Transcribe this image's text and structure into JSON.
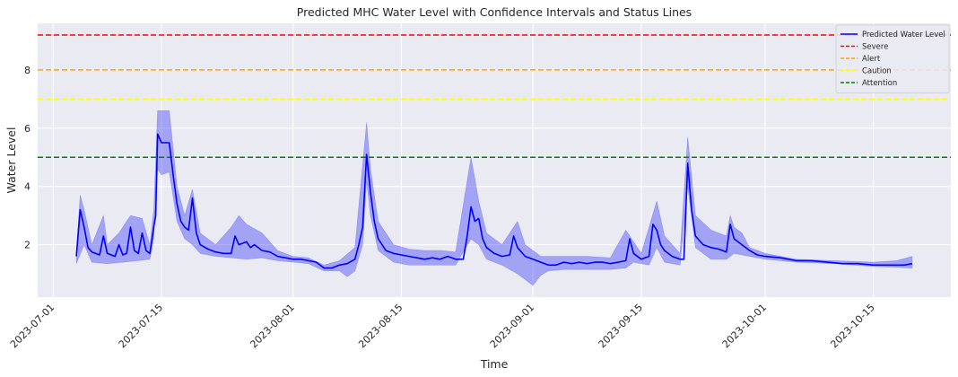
{
  "chart_data": {
    "type": "line",
    "title": "Predicted MHC Water Level with Confidence Intervals and Status Lines",
    "xlabel": "Time",
    "ylabel": "Water Level",
    "xlim": [
      "2023-06-29",
      "2023-10-25"
    ],
    "ylim": [
      0.2,
      9.6
    ],
    "grid": true,
    "legend_position": "top-right",
    "x_ticks": [
      "2023-07-01",
      "2023-07-15",
      "2023-08-01",
      "2023-08-15",
      "2023-09-01",
      "2023-09-15",
      "2023-10-01",
      "2023-10-15"
    ],
    "y_ticks": [
      2,
      4,
      6,
      8
    ],
    "series": [
      {
        "name": "Predicted Water Level",
        "color": "#0000ff",
        "points": [
          [
            "2023-07-04",
            1.6
          ],
          [
            "2023-07-04T12",
            3.2
          ],
          [
            "2023-07-05",
            2.6
          ],
          [
            "2023-07-05T12",
            1.9
          ],
          [
            "2023-07-06",
            1.75
          ],
          [
            "2023-07-07",
            1.65
          ],
          [
            "2023-07-07T12",
            2.3
          ],
          [
            "2023-07-08",
            1.7
          ],
          [
            "2023-07-09",
            1.6
          ],
          [
            "2023-07-09T12",
            2.0
          ],
          [
            "2023-07-10",
            1.65
          ],
          [
            "2023-07-10T12",
            1.7
          ],
          [
            "2023-07-11",
            2.6
          ],
          [
            "2023-07-11T12",
            1.8
          ],
          [
            "2023-07-12",
            1.7
          ],
          [
            "2023-07-12T12",
            2.4
          ],
          [
            "2023-07-13",
            1.8
          ],
          [
            "2023-07-13T12",
            1.7
          ],
          [
            "2023-07-14",
            2.6
          ],
          [
            "2023-07-14T06",
            3.0
          ],
          [
            "2023-07-14T12",
            5.8
          ],
          [
            "2023-07-15",
            5.5
          ],
          [
            "2023-07-16",
            5.5
          ],
          [
            "2023-07-16T12",
            4.4
          ],
          [
            "2023-07-17",
            3.4
          ],
          [
            "2023-07-17T12",
            2.8
          ],
          [
            "2023-07-18",
            2.6
          ],
          [
            "2023-07-18T12",
            2.5
          ],
          [
            "2023-07-19",
            3.6
          ],
          [
            "2023-07-19T12",
            2.4
          ],
          [
            "2023-07-20",
            2.0
          ],
          [
            "2023-07-21",
            1.85
          ],
          [
            "2023-07-22",
            1.75
          ],
          [
            "2023-07-23",
            1.7
          ],
          [
            "2023-07-24",
            1.7
          ],
          [
            "2023-07-24T12",
            2.3
          ],
          [
            "2023-07-25",
            2.0
          ],
          [
            "2023-07-26",
            2.1
          ],
          [
            "2023-07-26T12",
            1.9
          ],
          [
            "2023-07-27",
            2.0
          ],
          [
            "2023-07-28",
            1.8
          ],
          [
            "2023-07-29",
            1.75
          ],
          [
            "2023-07-30",
            1.6
          ],
          [
            "2023-07-31",
            1.55
          ],
          [
            "2023-08-01",
            1.5
          ],
          [
            "2023-08-02",
            1.5
          ],
          [
            "2023-08-03",
            1.45
          ],
          [
            "2023-08-04",
            1.4
          ],
          [
            "2023-08-05",
            1.2
          ],
          [
            "2023-08-06",
            1.2
          ],
          [
            "2023-08-07",
            1.3
          ],
          [
            "2023-08-08",
            1.35
          ],
          [
            "2023-08-09",
            1.5
          ],
          [
            "2023-08-09T12",
            2.0
          ],
          [
            "2023-08-10",
            2.6
          ],
          [
            "2023-08-10T12",
            5.1
          ],
          [
            "2023-08-11",
            3.8
          ],
          [
            "2023-08-11T12",
            2.8
          ],
          [
            "2023-08-12",
            2.2
          ],
          [
            "2023-08-13",
            1.8
          ],
          [
            "2023-08-14",
            1.7
          ],
          [
            "2023-08-15",
            1.65
          ],
          [
            "2023-08-16",
            1.6
          ],
          [
            "2023-08-17",
            1.55
          ],
          [
            "2023-08-18",
            1.5
          ],
          [
            "2023-08-19",
            1.55
          ],
          [
            "2023-08-20",
            1.5
          ],
          [
            "2023-08-21",
            1.6
          ],
          [
            "2023-08-22",
            1.5
          ],
          [
            "2023-08-23",
            1.5
          ],
          [
            "2023-08-23T12",
            2.3
          ],
          [
            "2023-08-24",
            3.3
          ],
          [
            "2023-08-24T12",
            2.8
          ],
          [
            "2023-08-25",
            2.9
          ],
          [
            "2023-08-25T12",
            2.2
          ],
          [
            "2023-08-26",
            1.9
          ],
          [
            "2023-08-27",
            1.7
          ],
          [
            "2023-08-28",
            1.6
          ],
          [
            "2023-08-29",
            1.65
          ],
          [
            "2023-08-29T12",
            2.3
          ],
          [
            "2023-08-30",
            1.9
          ],
          [
            "2023-08-31",
            1.6
          ],
          [
            "2023-09-01",
            1.5
          ],
          [
            "2023-09-02",
            1.4
          ],
          [
            "2023-09-03",
            1.3
          ],
          [
            "2023-09-04",
            1.3
          ],
          [
            "2023-09-05",
            1.4
          ],
          [
            "2023-09-06",
            1.35
          ],
          [
            "2023-09-07",
            1.4
          ],
          [
            "2023-09-08",
            1.35
          ],
          [
            "2023-09-09",
            1.4
          ],
          [
            "2023-09-10",
            1.4
          ],
          [
            "2023-09-11",
            1.35
          ],
          [
            "2023-09-12",
            1.4
          ],
          [
            "2023-09-13",
            1.45
          ],
          [
            "2023-09-13T12",
            2.2
          ],
          [
            "2023-09-14",
            1.7
          ],
          [
            "2023-09-15",
            1.5
          ],
          [
            "2023-09-16",
            1.6
          ],
          [
            "2023-09-16T12",
            2.7
          ],
          [
            "2023-09-17",
            2.5
          ],
          [
            "2023-09-17T12",
            2.0
          ],
          [
            "2023-09-18",
            1.8
          ],
          [
            "2023-09-19",
            1.6
          ],
          [
            "2023-09-20",
            1.5
          ],
          [
            "2023-09-20T12",
            1.5
          ],
          [
            "2023-09-21",
            4.8
          ],
          [
            "2023-09-21T12",
            3.2
          ],
          [
            "2023-09-22",
            2.3
          ],
          [
            "2023-09-23",
            2.0
          ],
          [
            "2023-09-24",
            1.9
          ],
          [
            "2023-09-25",
            1.85
          ],
          [
            "2023-09-26",
            1.75
          ],
          [
            "2023-09-26T12",
            2.7
          ],
          [
            "2023-09-27",
            2.2
          ],
          [
            "2023-09-28",
            2.0
          ],
          [
            "2023-09-29",
            1.8
          ],
          [
            "2023-09-30",
            1.65
          ],
          [
            "2023-10-01",
            1.6
          ],
          [
            "2023-10-03",
            1.55
          ],
          [
            "2023-10-05",
            1.45
          ],
          [
            "2023-10-07",
            1.45
          ],
          [
            "2023-10-09",
            1.4
          ],
          [
            "2023-10-11",
            1.35
          ],
          [
            "2023-10-13",
            1.35
          ],
          [
            "2023-10-15",
            1.3
          ],
          [
            "2023-10-17",
            1.3
          ],
          [
            "2023-10-19",
            1.3
          ],
          [
            "2023-10-20",
            1.35
          ]
        ]
      }
    ],
    "confidence_band": {
      "color": "#0000ff",
      "opacity": 0.3,
      "lower": [
        [
          "2023-07-04",
          1.35
        ],
        [
          "2023-07-05",
          2.0
        ],
        [
          "2023-07-06",
          1.4
        ],
        [
          "2023-07-08",
          1.35
        ],
        [
          "2023-07-10",
          1.4
        ],
        [
          "2023-07-12",
          1.45
        ],
        [
          "2023-07-13T12",
          1.5
        ],
        [
          "2023-07-14",
          2.2
        ],
        [
          "2023-07-14T12",
          4.6
        ],
        [
          "2023-07-15",
          4.4
        ],
        [
          "2023-07-16",
          4.5
        ],
        [
          "2023-07-17",
          2.8
        ],
        [
          "2023-07-18",
          2.2
        ],
        [
          "2023-07-19",
          2.0
        ],
        [
          "2023-07-20",
          1.7
        ],
        [
          "2023-07-22",
          1.6
        ],
        [
          "2023-07-24",
          1.55
        ],
        [
          "2023-07-26",
          1.5
        ],
        [
          "2023-07-28",
          1.55
        ],
        [
          "2023-07-30",
          1.45
        ],
        [
          "2023-08-01",
          1.4
        ],
        [
          "2023-08-03",
          1.35
        ],
        [
          "2023-08-05",
          1.1
        ],
        [
          "2023-08-07",
          1.1
        ],
        [
          "2023-08-08",
          0.9
        ],
        [
          "2023-08-09",
          1.1
        ],
        [
          "2023-08-10",
          2.0
        ],
        [
          "2023-08-10T12",
          4.2
        ],
        [
          "2023-08-11",
          3.0
        ],
        [
          "2023-08-12",
          1.8
        ],
        [
          "2023-08-14",
          1.4
        ],
        [
          "2023-08-16",
          1.3
        ],
        [
          "2023-08-18",
          1.3
        ],
        [
          "2023-08-20",
          1.3
        ],
        [
          "2023-08-22",
          1.3
        ],
        [
          "2023-08-24",
          2.2
        ],
        [
          "2023-08-25",
          2.0
        ],
        [
          "2023-08-26",
          1.5
        ],
        [
          "2023-08-28",
          1.3
        ],
        [
          "2023-08-30",
          1.0
        ],
        [
          "2023-09-01",
          0.6
        ],
        [
          "2023-09-02",
          0.95
        ],
        [
          "2023-09-03",
          1.1
        ],
        [
          "2023-09-05",
          1.15
        ],
        [
          "2023-09-08",
          1.15
        ],
        [
          "2023-09-11",
          1.15
        ],
        [
          "2023-09-13",
          1.2
        ],
        [
          "2023-09-14",
          1.4
        ],
        [
          "2023-09-16",
          1.3
        ],
        [
          "2023-09-17",
          1.9
        ],
        [
          "2023-09-18",
          1.4
        ],
        [
          "2023-09-20",
          1.3
        ],
        [
          "2023-09-21",
          4.0
        ],
        [
          "2023-09-22",
          1.9
        ],
        [
          "2023-09-24",
          1.5
        ],
        [
          "2023-09-26",
          1.5
        ],
        [
          "2023-09-27",
          1.7
        ],
        [
          "2023-09-29",
          1.6
        ],
        [
          "2023-10-01",
          1.5
        ],
        [
          "2023-10-05",
          1.4
        ],
        [
          "2023-10-10",
          1.35
        ],
        [
          "2023-10-15",
          1.25
        ],
        [
          "2023-10-20",
          1.2
        ]
      ],
      "upper": [
        [
          "2023-07-04",
          1.8
        ],
        [
          "2023-07-04T12",
          3.7
        ],
        [
          "2023-07-05",
          3.2
        ],
        [
          "2023-07-06",
          2.0
        ],
        [
          "2023-07-07T12",
          3.0
        ],
        [
          "2023-07-08",
          2.0
        ],
        [
          "2023-07-09T12",
          2.4
        ],
        [
          "2023-07-11",
          3.0
        ],
        [
          "2023-07-12T12",
          2.9
        ],
        [
          "2023-07-13T12",
          2.0
        ],
        [
          "2023-07-14",
          3.2
        ],
        [
          "2023-07-14T12",
          6.6
        ],
        [
          "2023-07-15",
          6.6
        ],
        [
          "2023-07-16",
          6.6
        ],
        [
          "2023-07-17",
          4.0
        ],
        [
          "2023-07-18",
          3.0
        ],
        [
          "2023-07-19",
          3.9
        ],
        [
          "2023-07-20",
          2.4
        ],
        [
          "2023-07-22",
          2.0
        ],
        [
          "2023-07-24",
          2.6
        ],
        [
          "2023-07-25",
          3.0
        ],
        [
          "2023-07-26",
          2.7
        ],
        [
          "2023-07-28",
          2.4
        ],
        [
          "2023-07-30",
          1.8
        ],
        [
          "2023-08-01",
          1.6
        ],
        [
          "2023-08-03",
          1.55
        ],
        [
          "2023-08-05",
          1.3
        ],
        [
          "2023-08-07",
          1.45
        ],
        [
          "2023-08-09",
          1.9
        ],
        [
          "2023-08-10T12",
          6.2
        ],
        [
          "2023-08-11",
          4.6
        ],
        [
          "2023-08-12",
          2.8
        ],
        [
          "2023-08-14",
          2.0
        ],
        [
          "2023-08-16",
          1.85
        ],
        [
          "2023-08-18",
          1.8
        ],
        [
          "2023-08-20",
          1.8
        ],
        [
          "2023-08-22",
          1.75
        ],
        [
          "2023-08-24",
          5.0
        ],
        [
          "2023-08-25",
          3.5
        ],
        [
          "2023-08-26",
          2.4
        ],
        [
          "2023-08-28",
          2.0
        ],
        [
          "2023-08-29",
          2.4
        ],
        [
          "2023-08-30",
          2.8
        ],
        [
          "2023-08-31",
          2.0
        ],
        [
          "2023-09-02",
          1.6
        ],
        [
          "2023-09-05",
          1.6
        ],
        [
          "2023-09-08",
          1.6
        ],
        [
          "2023-09-11",
          1.55
        ],
        [
          "2023-09-13",
          2.5
        ],
        [
          "2023-09-15",
          1.7
        ],
        [
          "2023-09-17",
          3.5
        ],
        [
          "2023-09-18",
          2.3
        ],
        [
          "2023-09-20",
          1.7
        ],
        [
          "2023-09-21",
          5.7
        ],
        [
          "2023-09-22",
          3.0
        ],
        [
          "2023-09-24",
          2.5
        ],
        [
          "2023-09-26",
          2.3
        ],
        [
          "2023-09-26T12",
          3.0
        ],
        [
          "2023-09-27",
          2.6
        ],
        [
          "2023-09-28",
          2.4
        ],
        [
          "2023-09-29",
          1.9
        ],
        [
          "2023-10-01",
          1.7
        ],
        [
          "2023-10-05",
          1.5
        ],
        [
          "2023-10-10",
          1.45
        ],
        [
          "2023-10-15",
          1.4
        ],
        [
          "2023-10-18",
          1.45
        ],
        [
          "2023-10-20",
          1.6
        ]
      ]
    },
    "status_lines": [
      {
        "name": "Severe",
        "value": 9.2,
        "color": "#ff0000"
      },
      {
        "name": "Alert",
        "value": 8.0,
        "color": "#ffa500"
      },
      {
        "name": "Caution",
        "value": 7.0,
        "color": "#ffff00"
      },
      {
        "name": "Attention",
        "value": 5.0,
        "color": "#008000"
      }
    ]
  }
}
